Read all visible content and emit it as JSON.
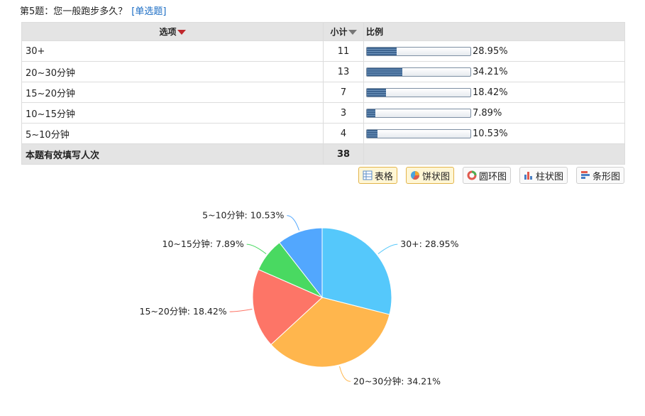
{
  "question": {
    "title": "第5题：您一般跑步多久？",
    "type": "[单选题]"
  },
  "table": {
    "headers": {
      "option": "选项",
      "count": "小计",
      "ratio": "比例"
    },
    "rows": [
      {
        "option": "30+",
        "count": "11",
        "percent": "28.95%",
        "ratio": 0.2895
      },
      {
        "option": "20~30分钟",
        "count": "13",
        "percent": "34.21%",
        "ratio": 0.3421
      },
      {
        "option": "15~20分钟",
        "count": "7",
        "percent": "18.42%",
        "ratio": 0.1842
      },
      {
        "option": "10~15分钟",
        "count": "3",
        "percent": "7.89%",
        "ratio": 0.0789
      },
      {
        "option": "5~10分钟",
        "count": "4",
        "percent": "10.53%",
        "ratio": 0.1053
      }
    ],
    "total": {
      "label": "本题有效填写人次",
      "count": "38"
    }
  },
  "view_buttons": [
    {
      "label": "表格",
      "icon": "table-icon",
      "active": true
    },
    {
      "label": "饼状图",
      "icon": "pie-chart-icon",
      "active": true
    },
    {
      "label": "圆环图",
      "icon": "donut-chart-icon",
      "active": false
    },
    {
      "label": "柱状图",
      "icon": "column-chart-icon",
      "active": false
    },
    {
      "label": "条形图",
      "icon": "bar-chart-icon",
      "active": false
    }
  ],
  "chart_data": {
    "type": "pie",
    "categories": [
      "30+",
      "20~30分钟",
      "15~20分钟",
      "10~15分钟",
      "5~10分钟"
    ],
    "values": [
      28.95,
      34.21,
      18.42,
      7.89,
      10.53
    ],
    "labels": [
      "30+: 28.95%",
      "20~30分钟: 34.21%",
      "15~20分钟: 18.42%",
      "10~15分钟: 7.89%",
      "5~10分钟: 10.53%"
    ],
    "colors": [
      "#55c8fb",
      "#ffb64d",
      "#fd7567",
      "#49d961",
      "#52a7fe"
    ]
  }
}
